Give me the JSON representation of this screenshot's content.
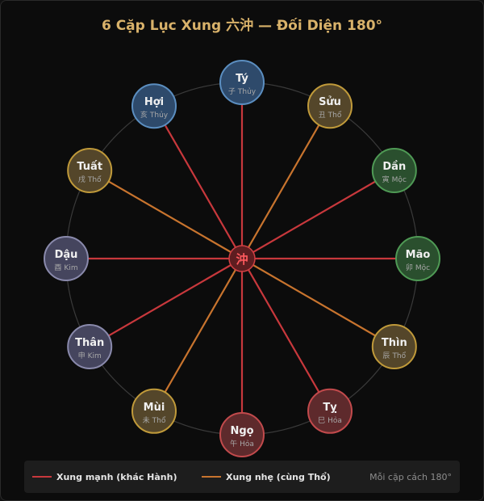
{
  "title": "6 Cặp Lục Xung 六沖 — Đối Diện 180°",
  "center_label": "沖",
  "nodes": [
    {
      "name": "Tý",
      "han": "子",
      "element": "Thủy",
      "fill": "#2e4a6b",
      "stroke": "#5b8ec0"
    },
    {
      "name": "Sửu",
      "han": "丑",
      "element": "Thổ",
      "fill": "#54462a",
      "stroke": "#c09a3a"
    },
    {
      "name": "Dần",
      "han": "寅",
      "element": "Mộc",
      "fill": "#2a4f2e",
      "stroke": "#4f9a55"
    },
    {
      "name": "Mão",
      "han": "卯",
      "element": "Mộc",
      "fill": "#2a4f2e",
      "stroke": "#4f9a55"
    },
    {
      "name": "Thìn",
      "han": "辰",
      "element": "Thổ",
      "fill": "#54462a",
      "stroke": "#c09a3a"
    },
    {
      "name": "Tỵ",
      "han": "巳",
      "element": "Hỏa",
      "fill": "#5e2a2c",
      "stroke": "#c24a4c"
    },
    {
      "name": "Ngọ",
      "han": "午",
      "element": "Hỏa",
      "fill": "#5e2a2c",
      "stroke": "#c24a4c"
    },
    {
      "name": "Mùi",
      "han": "未",
      "element": "Thổ",
      "fill": "#54462a",
      "stroke": "#c09a3a"
    },
    {
      "name": "Thân",
      "han": "申",
      "element": "Kim",
      "fill": "#45455e",
      "stroke": "#8a8aac"
    },
    {
      "name": "Dậu",
      "han": "酉",
      "element": "Kim",
      "fill": "#45455e",
      "stroke": "#8a8aac"
    },
    {
      "name": "Tuất",
      "han": "戌",
      "element": "Thổ",
      "fill": "#54462a",
      "stroke": "#c09a3a"
    },
    {
      "name": "Hợi",
      "han": "亥",
      "element": "Thủy",
      "fill": "#2e4a6b",
      "stroke": "#5b8ec0"
    }
  ],
  "pairs": [
    {
      "a": "Tý",
      "b": "Ngọ",
      "type": "strong"
    },
    {
      "a": "Sửu",
      "b": "Mùi",
      "type": "weak"
    },
    {
      "a": "Dần",
      "b": "Thân",
      "type": "strong"
    },
    {
      "a": "Mão",
      "b": "Dậu",
      "type": "strong"
    },
    {
      "a": "Thìn",
      "b": "Tuất",
      "type": "weak"
    },
    {
      "a": "Tỵ",
      "b": "Hợi",
      "type": "strong"
    }
  ],
  "colors": {
    "strong": "#c8383c",
    "weak": "#c8742e",
    "ring": "#3a3a3a",
    "name_text": "#f0f0f0",
    "sub_text": "#a8a8a8",
    "center_fill": "#5e1d20",
    "center_stroke": "#d04044",
    "center_text": "#ff5a5e"
  },
  "legend": {
    "strong_label": "Xung mạnh (khác Hành)",
    "weak_label": "Xung nhẹ (cùng Thổ)",
    "note": "Mỗi cặp cách 180°"
  }
}
